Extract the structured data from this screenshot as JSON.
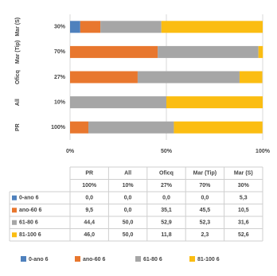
{
  "chart_data": {
    "type": "bar",
    "orientation": "horizontal",
    "stacked": true,
    "categories": [
      "PR",
      "All",
      "Oficq",
      "Mar (Tip)",
      "Mar (S)"
    ],
    "category_notes": [
      "100%",
      "10%",
      "27%",
      "70%",
      "30%"
    ],
    "series": [
      {
        "name": "0-ano 6",
        "color": "#4f81bd",
        "values": [
          0,
          0,
          0,
          0,
          5.3
        ],
        "value_labels": [
          "0,0",
          "0,0",
          "0,0",
          "0,0",
          "5,3"
        ]
      },
      {
        "name": "ano-60 6",
        "color": "#e8772e",
        "values": [
          9.5,
          0,
          35.1,
          45.5,
          10.5
        ],
        "value_labels": [
          "9,5",
          "0,0",
          "35,1",
          "45,5",
          "10,5"
        ]
      },
      {
        "name": "61-80 6",
        "color": "#a6a6a6",
        "values": [
          44.4,
          50,
          52.9,
          52.3,
          31.6
        ],
        "value_labels": [
          "44,4",
          "50,0",
          "52,9",
          "52,3",
          "31,6"
        ]
      },
      {
        "name": "81-100 6",
        "color": "#fbbd12",
        "values": [
          46,
          50,
          11.8,
          2.3,
          52.6
        ],
        "value_labels": [
          "46,0",
          "50,0",
          "11,8",
          "2,3",
          "52,6"
        ]
      }
    ],
    "xlim": [
      0,
      100
    ],
    "xticks": [
      {
        "value": 0,
        "label": "0%"
      },
      {
        "value": 50,
        "label": "50%"
      },
      {
        "value": 100,
        "label": "100%"
      }
    ],
    "grid": true
  }
}
